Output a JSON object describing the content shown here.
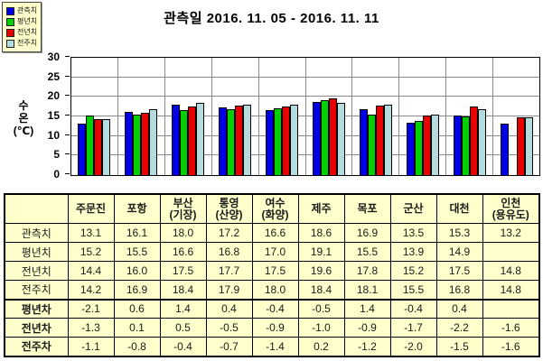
{
  "title": "관측일 2016. 11. 05 - 2016. 11. 11",
  "chart_data": {
    "type": "bar",
    "title": "관측일 2016. 11. 05 - 2016. 11. 11",
    "ylabel": "수\n온\n(℃)",
    "xlabel": "",
    "ylim": [
      0,
      30
    ],
    "ytick_step": 5,
    "grid": true,
    "legend_position": "top-left",
    "categories": [
      "주문진",
      "포항",
      "부산(기장)",
      "통영(산양)",
      "여수(화양)",
      "제주",
      "목포",
      "군산",
      "대천",
      "인천(용유도)"
    ],
    "series": [
      {
        "name": "관측치",
        "color": "#0000E6",
        "values": [
          13.1,
          16.1,
          18.0,
          17.2,
          16.6,
          18.6,
          16.9,
          13.5,
          15.3,
          13.2
        ]
      },
      {
        "name": "평년치",
        "color": "#00D000",
        "values": [
          15.2,
          15.5,
          16.6,
          16.8,
          17.0,
          19.1,
          15.5,
          13.9,
          14.9,
          null
        ]
      },
      {
        "name": "전년치",
        "color": "#E80000",
        "values": [
          14.4,
          16.0,
          17.5,
          17.7,
          17.5,
          19.6,
          17.8,
          15.2,
          17.5,
          14.8
        ]
      },
      {
        "name": "전주치",
        "color": "#B4DBDE",
        "values": [
          14.2,
          16.9,
          18.4,
          17.9,
          18.0,
          18.4,
          18.1,
          15.5,
          16.8,
          14.8
        ]
      }
    ]
  },
  "table": {
    "corner": "",
    "columns": [
      "주문진",
      "포항",
      "부산\n(기장)",
      "통영\n(산양)",
      "여수\n(화양)",
      "제주",
      "목포",
      "군산",
      "대천",
      "인천\n(용유도)"
    ],
    "rows": [
      {
        "label": "관측치",
        "bold": false,
        "sep": false,
        "values": [
          "13.1",
          "16.1",
          "18.0",
          "17.2",
          "16.6",
          "18.6",
          "16.9",
          "13.5",
          "15.3",
          "13.2"
        ]
      },
      {
        "label": "평년치",
        "bold": false,
        "sep": false,
        "values": [
          "15.2",
          "15.5",
          "16.6",
          "16.8",
          "17.0",
          "19.1",
          "15.5",
          "13.9",
          "14.9",
          ""
        ]
      },
      {
        "label": "전년치",
        "bold": false,
        "sep": false,
        "values": [
          "14.4",
          "16.0",
          "17.5",
          "17.7",
          "17.5",
          "19.6",
          "17.8",
          "15.2",
          "17.5",
          "14.8"
        ]
      },
      {
        "label": "전주치",
        "bold": false,
        "sep": false,
        "values": [
          "14.2",
          "16.9",
          "18.4",
          "17.9",
          "18.0",
          "18.4",
          "18.1",
          "15.5",
          "16.8",
          "14.8"
        ]
      },
      {
        "label": "평년차",
        "bold": true,
        "sep": true,
        "values": [
          "-2.1",
          "0.6",
          "1.4",
          "0.4",
          "-0.4",
          "-0.5",
          "1.4",
          "-0.4",
          "0.4",
          ""
        ]
      },
      {
        "label": "전년차",
        "bold": true,
        "sep": false,
        "values": [
          "-1.3",
          "0.1",
          "0.5",
          "-0.5",
          "-0.9",
          "-1.0",
          "-0.9",
          "-1.7",
          "-2.2",
          "-1.6"
        ]
      },
      {
        "label": "전주차",
        "bold": true,
        "sep": false,
        "values": [
          "-1.1",
          "-0.8",
          "-0.4",
          "-0.7",
          "-1.4",
          "0.2",
          "-1.2",
          "-2.0",
          "-1.5",
          "-1.6"
        ]
      }
    ]
  },
  "colors": {
    "panel_background": "#FFFFCC",
    "plot_border": "#000000",
    "gridline": "#8A8A8A",
    "bar_observed": "#0000E6",
    "bar_normal_year": "#00D000",
    "bar_previous_year": "#E80000",
    "bar_previous_week": "#B4DBDE"
  }
}
